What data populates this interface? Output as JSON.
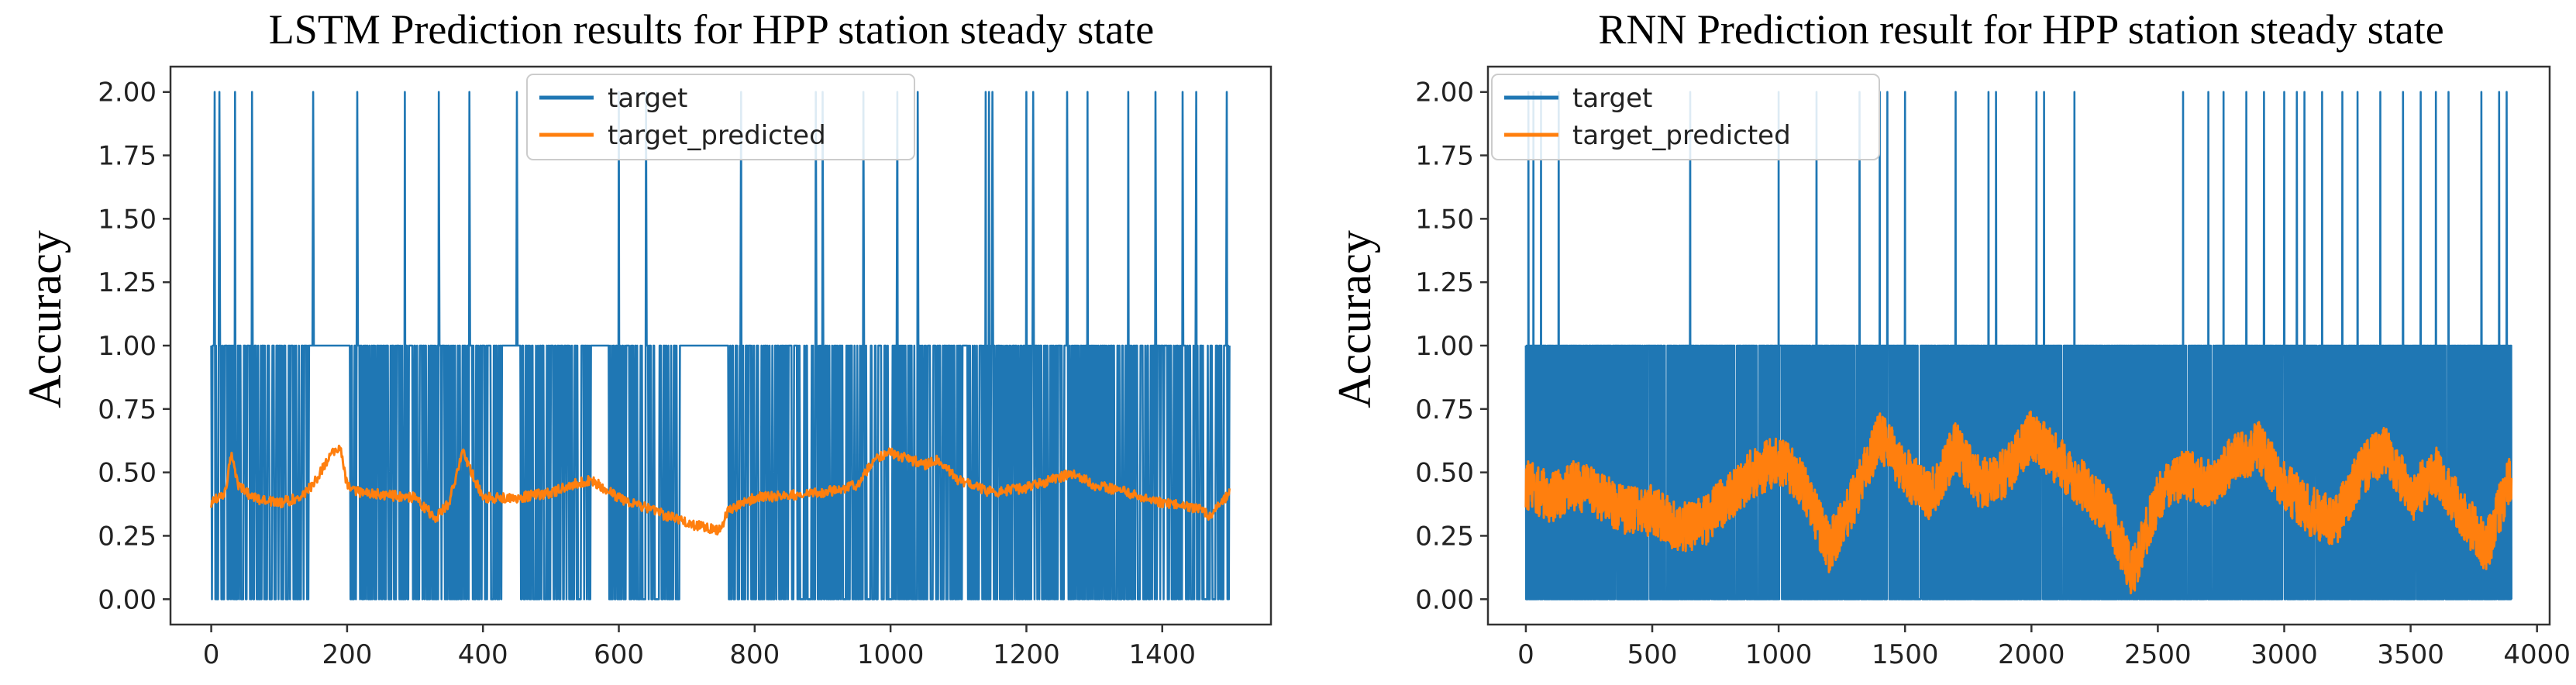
{
  "chart_data": [
    {
      "type": "line",
      "title": "LSTM Prediction results for HPP station steady state",
      "xlabel": "",
      "ylabel": "Accuracy",
      "xlim": [
        -60,
        1560
      ],
      "ylim": [
        -0.1,
        2.1
      ],
      "xticks": [
        0,
        200,
        400,
        600,
        800,
        1000,
        1200,
        1400
      ],
      "yticks": [
        0.0,
        0.25,
        0.5,
        0.75,
        1.0,
        1.25,
        1.5,
        1.75,
        2.0
      ],
      "ytick_labels": [
        "0.00",
        "0.25",
        "0.50",
        "0.75",
        "1.00",
        "1.25",
        "1.50",
        "1.75",
        "2.00"
      ],
      "legend_position": "top-center",
      "series": [
        {
          "name": "target",
          "color": "#1f77b4",
          "kind": "discrete",
          "n_points": 1500,
          "levels": [
            0,
            1,
            2
          ],
          "spikes_to_2": [
            5,
            12,
            35,
            60,
            150,
            215,
            285,
            335,
            380,
            450,
            600,
            640,
            780,
            890,
            900,
            960,
            1010,
            1040,
            1140,
            1145,
            1150,
            1200,
            1210,
            1260,
            1290,
            1350,
            1390,
            1430,
            1450,
            1495
          ],
          "dense_zero_one_ranges": [
            [
              0,
              145
            ],
            [
              205,
              430
            ],
            [
              455,
              560
            ],
            [
              580,
              690
            ],
            [
              760,
              1500
            ]
          ],
          "constant_one_ranges": [
            [
              145,
              205
            ],
            [
              430,
              455
            ],
            [
              560,
              580
            ],
            [
              690,
              760
            ]
          ]
        },
        {
          "name": "target_predicted",
          "color": "#ff7f0e",
          "kind": "continuous",
          "n_points": 1500,
          "anchors_x": [
            0,
            20,
            30,
            40,
            60,
            100,
            130,
            150,
            175,
            190,
            200,
            220,
            300,
            330,
            350,
            370,
            380,
            400,
            450,
            500,
            540,
            560,
            600,
            700,
            750,
            760,
            800,
            900,
            950,
            980,
            1000,
            1050,
            1070,
            1100,
            1150,
            1200,
            1250,
            1270,
            1300,
            1350,
            1400,
            1450,
            1470,
            1500
          ],
          "anchors_y": [
            0.38,
            0.42,
            0.58,
            0.45,
            0.4,
            0.38,
            0.4,
            0.45,
            0.57,
            0.6,
            0.45,
            0.42,
            0.4,
            0.32,
            0.38,
            0.58,
            0.52,
            0.4,
            0.4,
            0.42,
            0.46,
            0.47,
            0.4,
            0.3,
            0.27,
            0.35,
            0.4,
            0.42,
            0.45,
            0.56,
            0.58,
            0.53,
            0.55,
            0.47,
            0.42,
            0.44,
            0.48,
            0.5,
            0.45,
            0.42,
            0.38,
            0.36,
            0.33,
            0.42
          ],
          "noise_amplitude": 0.02
        }
      ]
    },
    {
      "type": "line",
      "title": "RNN Prediction result for HPP station steady state",
      "xlabel": "",
      "ylabel": "Accuracy",
      "xlim": [
        -150,
        4050
      ],
      "ylim": [
        -0.1,
        2.1
      ],
      "xticks": [
        0,
        500,
        1000,
        1500,
        2000,
        2500,
        3000,
        3500,
        4000
      ],
      "yticks": [
        0.0,
        0.25,
        0.5,
        0.75,
        1.0,
        1.25,
        1.5,
        1.75,
        2.0
      ],
      "ytick_labels": [
        "0.00",
        "0.25",
        "0.50",
        "0.75",
        "1.00",
        "1.25",
        "1.50",
        "1.75",
        "2.00"
      ],
      "legend_position": "top-left",
      "series": [
        {
          "name": "target",
          "color": "#1f77b4",
          "kind": "discrete",
          "n_points": 3900,
          "levels": [
            0,
            1,
            2
          ],
          "spikes_to_2": [
            10,
            30,
            60,
            130,
            650,
            1000,
            1150,
            1320,
            1400,
            1430,
            1500,
            1700,
            1830,
            1860,
            2020,
            2050,
            2170,
            2600,
            2700,
            2760,
            2850,
            2920,
            3000,
            3050,
            3080,
            3150,
            3230,
            3290,
            3380,
            3470,
            3540,
            3600,
            3650,
            3780,
            3850,
            3880
          ],
          "dense_zero_one_ranges": [
            [
              0,
              3900
            ]
          ],
          "constant_one_ranges": []
        },
        {
          "name": "target_predicted",
          "color": "#ff7f0e",
          "kind": "continuous",
          "n_points": 3900,
          "anchors_x": [
            0,
            100,
            200,
            300,
            400,
            500,
            600,
            700,
            800,
            900,
            1000,
            1100,
            1200,
            1300,
            1400,
            1500,
            1600,
            1700,
            1800,
            1900,
            2000,
            2100,
            2200,
            2300,
            2400,
            2500,
            2600,
            2700,
            2800,
            2900,
            3000,
            3100,
            3200,
            3300,
            3400,
            3500,
            3600,
            3700,
            3800,
            3900
          ],
          "anchors_y": [
            0.45,
            0.4,
            0.45,
            0.4,
            0.35,
            0.35,
            0.28,
            0.3,
            0.4,
            0.5,
            0.55,
            0.45,
            0.2,
            0.4,
            0.65,
            0.5,
            0.4,
            0.6,
            0.45,
            0.5,
            0.65,
            0.55,
            0.45,
            0.35,
            0.1,
            0.4,
            0.5,
            0.45,
            0.55,
            0.6,
            0.45,
            0.35,
            0.3,
            0.5,
            0.6,
            0.4,
            0.5,
            0.35,
            0.2,
            0.5
          ],
          "noise_amplitude": 0.1
        }
      ]
    }
  ]
}
